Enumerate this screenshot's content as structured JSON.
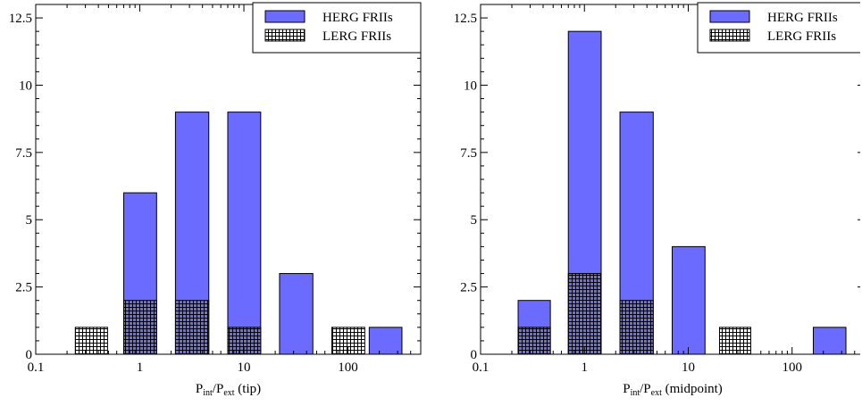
{
  "colors": {
    "herg": "#6b6bff",
    "lerg_fill": "#ffffff",
    "lerg_hatch": "#000000",
    "frame": "#000000"
  },
  "chart_data": [
    {
      "type": "bar",
      "stacked_overlay": true,
      "x_scale": "log",
      "xlim": [
        0.1,
        500
      ],
      "ylim": [
        0,
        13
      ],
      "xticks": [
        0.1,
        1,
        10,
        100
      ],
      "xtick_labels": [
        "0.1",
        "1",
        "10",
        "100"
      ],
      "yticks": [
        0,
        2.5,
        5,
        7.5,
        10,
        12.5
      ],
      "ytick_labels": [
        "0",
        "2.5",
        "5",
        "7.5",
        "10",
        "12.5"
      ],
      "xlabel": {
        "main": "P",
        "sub1": "int",
        "mid": "/P",
        "sub2": "ext",
        "suffix": " (tip)"
      },
      "ylabel": "",
      "legend_position": "top-right",
      "series": [
        {
          "name": "HERG FRIIs",
          "style": "solid",
          "bars": [
            {
              "x0": 0.7,
              "x1": 1.45,
              "value": 6
            },
            {
              "x0": 2.2,
              "x1": 4.6,
              "value": 9
            },
            {
              "x0": 7.0,
              "x1": 14.5,
              "value": 9
            },
            {
              "x0": 22,
              "x1": 46,
              "value": 3
            },
            {
              "x0": 160,
              "x1": 330,
              "value": 1
            }
          ]
        },
        {
          "name": "LERG FRIIs",
          "style": "hatched",
          "bars": [
            {
              "x0": 0.24,
              "x1": 0.49,
              "value": 1
            },
            {
              "x0": 0.7,
              "x1": 1.45,
              "value": 2
            },
            {
              "x0": 2.2,
              "x1": 4.6,
              "value": 2
            },
            {
              "x0": 7.0,
              "x1": 14.5,
              "value": 1
            },
            {
              "x0": 70,
              "x1": 145,
              "value": 1
            }
          ]
        }
      ]
    },
    {
      "type": "bar",
      "stacked_overlay": true,
      "x_scale": "log",
      "xlim": [
        0.1,
        500
      ],
      "ylim": [
        0,
        13
      ],
      "xticks": [
        0.1,
        1,
        10,
        100
      ],
      "xtick_labels": [
        "0.1",
        "1",
        "10",
        "100"
      ],
      "yticks": [
        0,
        2.5,
        5,
        7.5,
        10,
        12.5
      ],
      "ytick_labels": [
        "0",
        "2.5",
        "5",
        "7.5",
        "10",
        "12.5"
      ],
      "xlabel": {
        "main": "P",
        "sub1": "int",
        "mid": "/P",
        "sub2": "ext",
        "suffix": " (midpoint)"
      },
      "ylabel": "",
      "legend_position": "top-right",
      "series": [
        {
          "name": "HERG FRIIs",
          "style": "solid",
          "bars": [
            {
              "x0": 0.23,
              "x1": 0.47,
              "value": 2
            },
            {
              "x0": 0.7,
              "x1": 1.45,
              "value": 12
            },
            {
              "x0": 2.2,
              "x1": 4.6,
              "value": 9
            },
            {
              "x0": 7.0,
              "x1": 14.5,
              "value": 4
            },
            {
              "x0": 160,
              "x1": 330,
              "value": 1
            }
          ]
        },
        {
          "name": "LERG FRIIs",
          "style": "hatched",
          "bars": [
            {
              "x0": 0.23,
              "x1": 0.47,
              "value": 1
            },
            {
              "x0": 0.7,
              "x1": 1.45,
              "value": 3
            },
            {
              "x0": 2.2,
              "x1": 4.6,
              "value": 2
            },
            {
              "x0": 20,
              "x1": 40,
              "value": 1
            }
          ]
        }
      ]
    }
  ]
}
